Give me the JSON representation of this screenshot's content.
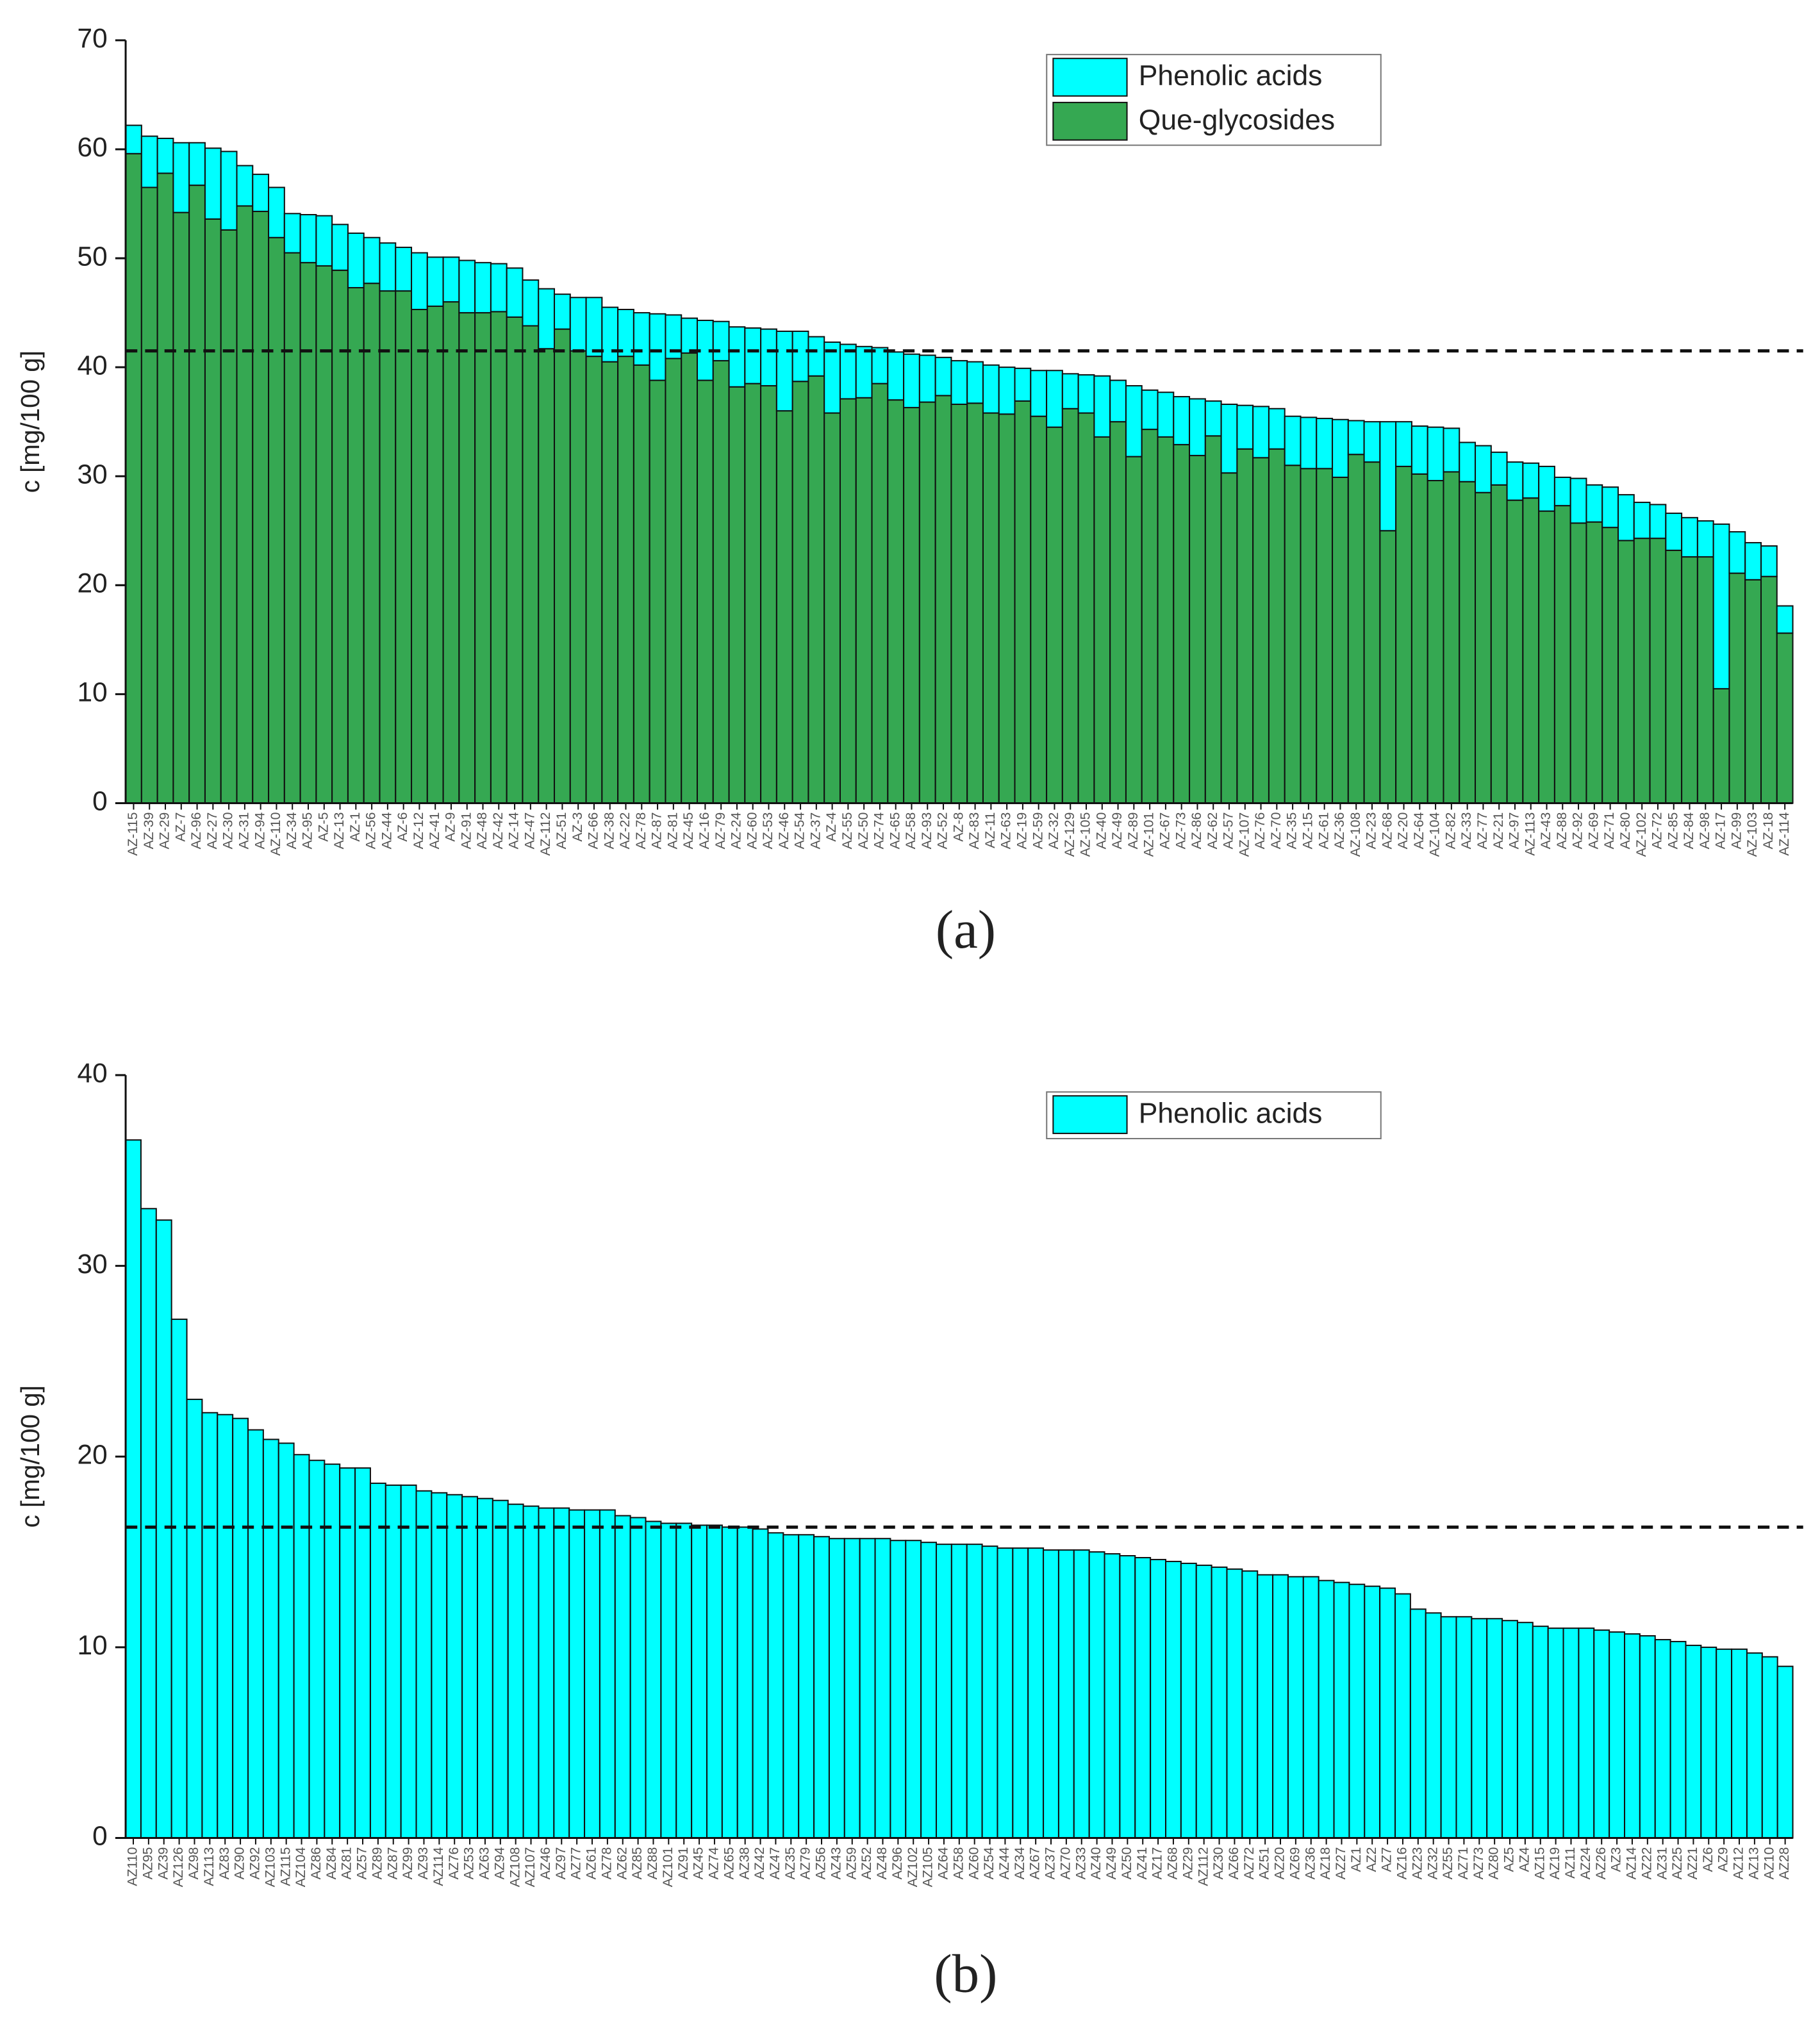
{
  "chart_data": [
    {
      "type": "bar",
      "stacked": true,
      "label": "(a)",
      "y_label": "c [mg/100 g]",
      "legend": "upper right",
      "ylim": [
        0,
        70
      ],
      "yticks": [
        0,
        10,
        20,
        30,
        40,
        50,
        60,
        70
      ],
      "reference_line": 41.5,
      "categories": [
        "AZ-115",
        "AZ-39",
        "AZ-29",
        "AZ-7",
        "AZ-96",
        "AZ-27",
        "AZ-30",
        "AZ-31",
        "AZ-94",
        "AZ-110",
        "AZ-34",
        "AZ-95",
        "AZ-5",
        "AZ-13",
        "AZ-1",
        "AZ-56",
        "AZ-44",
        "AZ-6",
        "AZ-12",
        "AZ-41",
        "AZ-9",
        "AZ-91",
        "AZ-48",
        "AZ-42",
        "AZ-14",
        "AZ-47",
        "AZ-112",
        "AZ-51",
        "AZ-3",
        "AZ-66",
        "AZ-38",
        "AZ-22",
        "AZ-78",
        "AZ-87",
        "AZ-81",
        "AZ-45",
        "AZ-16",
        "AZ-79",
        "AZ-24",
        "AZ-60",
        "AZ-53",
        "AZ-46",
        "AZ-54",
        "AZ-37",
        "AZ-4",
        "AZ-55",
        "AZ-50",
        "AZ-74",
        "AZ-65",
        "AZ-58",
        "AZ-93",
        "AZ-52",
        "AZ-8",
        "AZ-83",
        "AZ-11",
        "AZ-63",
        "AZ-19",
        "AZ-59",
        "AZ-32",
        "AZ-129",
        "AZ-105",
        "AZ-40",
        "AZ-49",
        "AZ-89",
        "AZ-101",
        "AZ-67",
        "AZ-73",
        "AZ-86",
        "AZ-62",
        "AZ-57",
        "AZ-107",
        "AZ-76",
        "AZ-70",
        "AZ-35",
        "AZ-15",
        "AZ-61",
        "AZ-36",
        "AZ-108",
        "AZ-23",
        "AZ-68",
        "AZ-20",
        "AZ-64",
        "AZ-104",
        "AZ-82",
        "AZ-33",
        "AZ-77",
        "AZ-21",
        "AZ-97",
        "AZ-113",
        "AZ-43",
        "AZ-88",
        "AZ-92",
        "AZ-69",
        "AZ-71",
        "AZ-80",
        "AZ-102",
        "AZ-72",
        "AZ-85",
        "AZ-84",
        "AZ-98",
        "AZ-17",
        "AZ-99",
        "AZ-103",
        "AZ-18",
        "AZ-114"
      ],
      "series": [
        {
          "name": "Phenolic acids",
          "color": "#00ffff",
          "values": [
            2.6,
            4.7,
            3.2,
            6.4,
            3.9,
            6.5,
            7.2,
            3.7,
            3.4,
            4.6,
            3.6,
            4.4,
            4.6,
            4.2,
            5.0,
            4.2,
            4.4,
            4.0,
            5.2,
            4.5,
            4.1,
            4.8,
            4.6,
            4.4,
            4.5,
            4.2,
            5.5,
            3.2,
            4.9,
            5.4,
            5.0,
            4.3,
            4.8,
            6.1,
            4.0,
            3.2,
            5.5,
            3.6,
            5.5,
            5.1,
            5.2,
            7.3,
            4.6,
            3.6,
            6.5,
            5.0,
            4.7,
            3.3,
            4.4,
            4.9,
            4.3,
            3.5,
            4.0,
            3.8,
            4.4,
            4.3,
            3.0,
            4.2,
            5.2,
            3.2,
            3.5,
            5.6,
            3.8,
            6.5,
            3.6,
            4.1,
            4.4,
            5.2,
            3.2,
            6.3,
            4.0,
            4.7,
            3.7,
            4.5,
            4.7,
            4.6,
            5.3,
            3.1,
            3.7,
            10.0,
            4.1,
            4.4,
            4.9,
            4.0,
            3.6,
            4.3,
            3.0,
            3.5,
            3.2,
            4.1,
            2.6,
            4.1,
            3.4,
            3.7,
            4.2,
            3.3,
            3.1,
            3.4,
            3.6,
            3.3,
            15.1,
            3.8,
            3.4,
            2.8,
            2.5
          ]
        },
        {
          "name": "Que-glycosides",
          "color": "#35a852",
          "values": [
            59.6,
            56.5,
            57.8,
            54.2,
            56.7,
            53.6,
            52.6,
            54.8,
            54.3,
            51.9,
            50.5,
            49.6,
            49.3,
            48.9,
            47.3,
            47.7,
            47.0,
            47.0,
            45.3,
            45.6,
            46.0,
            45.0,
            45.0,
            45.1,
            44.6,
            43.8,
            41.7,
            43.5,
            41.5,
            41.0,
            40.5,
            41.0,
            40.2,
            38.8,
            40.8,
            41.3,
            38.8,
            40.6,
            38.2,
            38.5,
            38.3,
            36.0,
            38.7,
            39.2,
            35.8,
            37.1,
            37.2,
            38.5,
            37.0,
            36.3,
            36.8,
            37.4,
            36.6,
            36.7,
            35.8,
            35.7,
            36.9,
            35.5,
            34.5,
            36.2,
            35.8,
            33.6,
            35.0,
            31.8,
            34.3,
            33.6,
            32.9,
            31.9,
            33.7,
            30.3,
            32.5,
            31.7,
            32.5,
            31.0,
            30.7,
            30.7,
            29.9,
            32.0,
            31.3,
            25.0,
            30.9,
            30.2,
            29.6,
            30.4,
            29.5,
            28.5,
            29.2,
            27.8,
            28.0,
            26.8,
            27.3,
            25.7,
            25.8,
            25.3,
            24.1,
            24.3,
            24.3,
            23.2,
            22.6,
            22.6,
            10.5,
            21.1,
            20.5,
            20.8,
            15.6
          ]
        }
      ]
    },
    {
      "type": "bar",
      "stacked": false,
      "label": "(b)",
      "y_label": "c [mg/100 g]",
      "legend": "upper right",
      "ylim": [
        0,
        40
      ],
      "yticks": [
        0,
        10,
        20,
        30,
        40
      ],
      "reference_line": 16.3,
      "categories": [
        "AZ110",
        "AZ95",
        "AZ39",
        "AZ126",
        "AZ98",
        "AZ113",
        "AZ83",
        "AZ90",
        "AZ92",
        "AZ103",
        "AZ115",
        "AZ104",
        "AZ86",
        "AZ84",
        "AZ81",
        "AZ57",
        "AZ89",
        "AZ87",
        "AZ99",
        "AZ93",
        "AZ114",
        "AZ76",
        "AZ53",
        "AZ63",
        "AZ94",
        "AZ108",
        "AZ107",
        "AZ46",
        "AZ97",
        "AZ77",
        "AZ61",
        "AZ78",
        "AZ62",
        "AZ85",
        "AZ88",
        "AZ101",
        "AZ91",
        "AZ45",
        "AZ74",
        "AZ65",
        "AZ38",
        "AZ42",
        "AZ47",
        "AZ35",
        "AZ79",
        "AZ56",
        "AZ43",
        "AZ59",
        "AZ52",
        "AZ48",
        "AZ96",
        "AZ102",
        "AZ105",
        "AZ64",
        "AZ58",
        "AZ60",
        "AZ54",
        "AZ44",
        "AZ34",
        "AZ67",
        "AZ37",
        "AZ70",
        "AZ33",
        "AZ40",
        "AZ49",
        "AZ50",
        "AZ41",
        "AZ17",
        "AZ68",
        "AZ29",
        "AZ112",
        "AZ30",
        "AZ66",
        "AZ72",
        "AZ51",
        "AZ20",
        "AZ69",
        "AZ36",
        "AZ18",
        "AZ27",
        "AZ1",
        "AZ2",
        "AZ7",
        "AZ16",
        "AZ23",
        "AZ32",
        "AZ55",
        "AZ71",
        "AZ73",
        "AZ80",
        "AZ5",
        "AZ4",
        "AZ15",
        "AZ19",
        "AZ11",
        "AZ24",
        "AZ26",
        "AZ3",
        "AZ14",
        "AZ22",
        "AZ31",
        "AZ25",
        "AZ21",
        "AZ6",
        "AZ9",
        "AZ12",
        "AZ13",
        "AZ10",
        "AZ28"
      ],
      "series": [
        {
          "name": "Phenolic acids",
          "color": "#00ffff",
          "values": [
            36.6,
            33.0,
            32.4,
            27.2,
            23.0,
            22.3,
            22.2,
            22.0,
            21.4,
            20.9,
            20.7,
            20.1,
            19.8,
            19.6,
            19.4,
            19.4,
            18.6,
            18.5,
            18.5,
            18.2,
            18.1,
            18.0,
            17.9,
            17.8,
            17.7,
            17.5,
            17.4,
            17.3,
            17.3,
            17.2,
            17.2,
            17.2,
            16.9,
            16.8,
            16.6,
            16.5,
            16.5,
            16.4,
            16.4,
            16.3,
            16.3,
            16.2,
            16.0,
            15.9,
            15.9,
            15.8,
            15.7,
            15.7,
            15.7,
            15.7,
            15.6,
            15.6,
            15.5,
            15.4,
            15.4,
            15.4,
            15.3,
            15.2,
            15.2,
            15.2,
            15.1,
            15.1,
            15.1,
            15.0,
            14.9,
            14.8,
            14.7,
            14.6,
            14.5,
            14.4,
            14.3,
            14.2,
            14.1,
            14.0,
            13.8,
            13.8,
            13.7,
            13.7,
            13.5,
            13.4,
            13.3,
            13.2,
            13.1,
            12.8,
            12.0,
            11.8,
            11.6,
            11.6,
            11.5,
            11.5,
            11.4,
            11.3,
            11.1,
            11.0,
            11.0,
            11.0,
            10.9,
            10.8,
            10.7,
            10.6,
            10.4,
            10.3,
            10.1,
            10.0,
            9.9,
            9.9,
            9.7,
            9.5,
            9.0
          ]
        }
      ]
    }
  ]
}
